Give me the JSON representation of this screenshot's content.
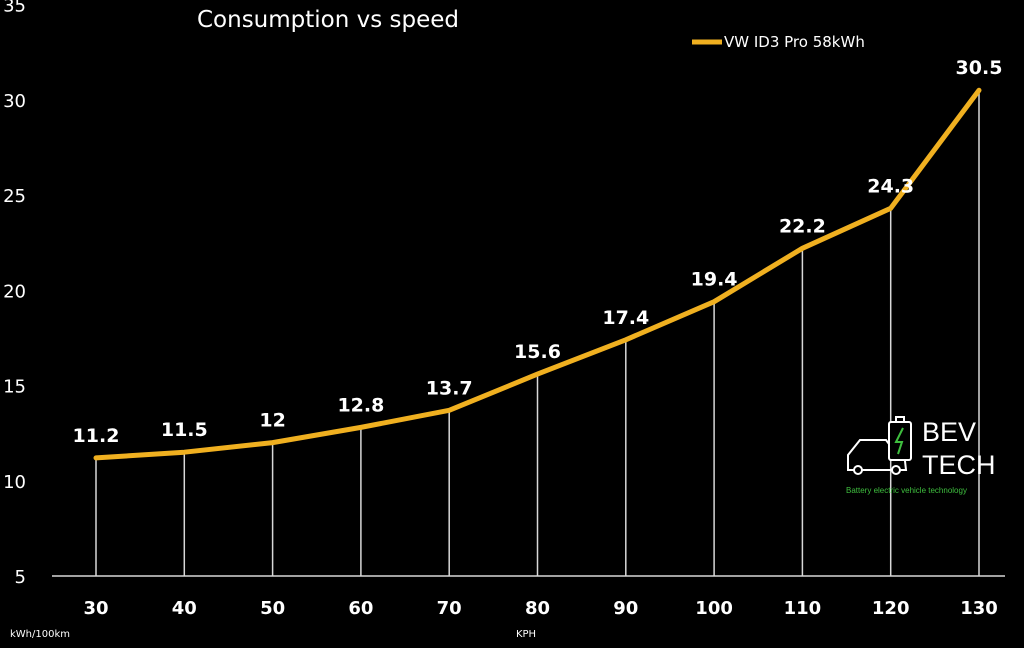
{
  "chart_data": {
    "type": "line",
    "title": "Consumption vs speed",
    "xlabel": "KPH",
    "ylabel": "kWh/100km",
    "categories": [
      "30",
      "40",
      "50",
      "60",
      "70",
      "80",
      "90",
      "100",
      "110",
      "120",
      "130"
    ],
    "series": [
      {
        "name": "VW ID3 Pro 58kWh",
        "color": "#f0b020",
        "values": [
          11.2,
          11.5,
          12,
          12.8,
          13.7,
          15.6,
          17.4,
          19.4,
          22.2,
          24.3,
          30.5
        ],
        "labels": [
          "11.2",
          "11.5",
          "12",
          "12.8",
          "13.7",
          "15.6",
          "17.4",
          "19.4",
          "22.2",
          "24.3",
          "30.5"
        ]
      }
    ],
    "yticks": [
      "5",
      "10",
      "15",
      "20",
      "25",
      "30",
      "35"
    ],
    "ylim": [
      5,
      35
    ],
    "drop_lines": true,
    "grid": false,
    "legend": "top-right"
  },
  "logo": {
    "line1": "BEV",
    "line2": "TECH",
    "tagline": "Battery electric vehicle technology"
  },
  "colors": {
    "background": "#000000",
    "series": "#f0b020",
    "drop_line": "#d8d8d8",
    "tagline": "#3fbf3f"
  }
}
